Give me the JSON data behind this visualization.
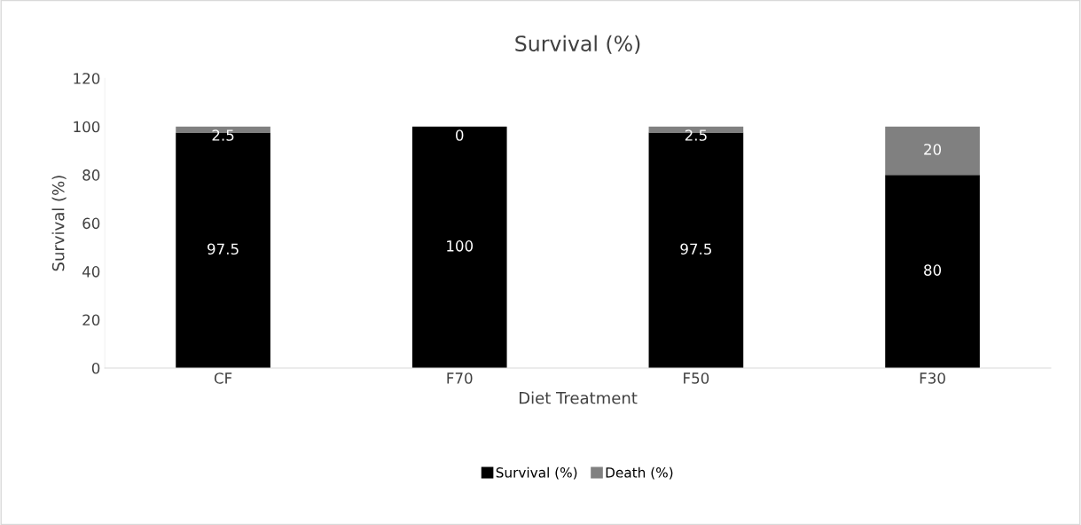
{
  "chart_data": {
    "type": "bar",
    "title": "Survival (%)",
    "xlabel": "Diet Treatment",
    "ylabel": "Survival (%)",
    "categories": [
      "CF",
      "F70",
      "F50",
      "F30"
    ],
    "series": [
      {
        "name": "Survival (%)",
        "color": "#000000",
        "values": [
          97.5,
          100,
          97.5,
          80
        ]
      },
      {
        "name": "Death (%)",
        "color": "#808080",
        "values": [
          2.5,
          0,
          2.5,
          20
        ]
      }
    ],
    "stacked": true,
    "ylim": [
      0,
      120
    ],
    "yticks": [
      0,
      20,
      40,
      60,
      80,
      100,
      120
    ],
    "grid": false,
    "legend": "bottom",
    "data_labels": true
  }
}
